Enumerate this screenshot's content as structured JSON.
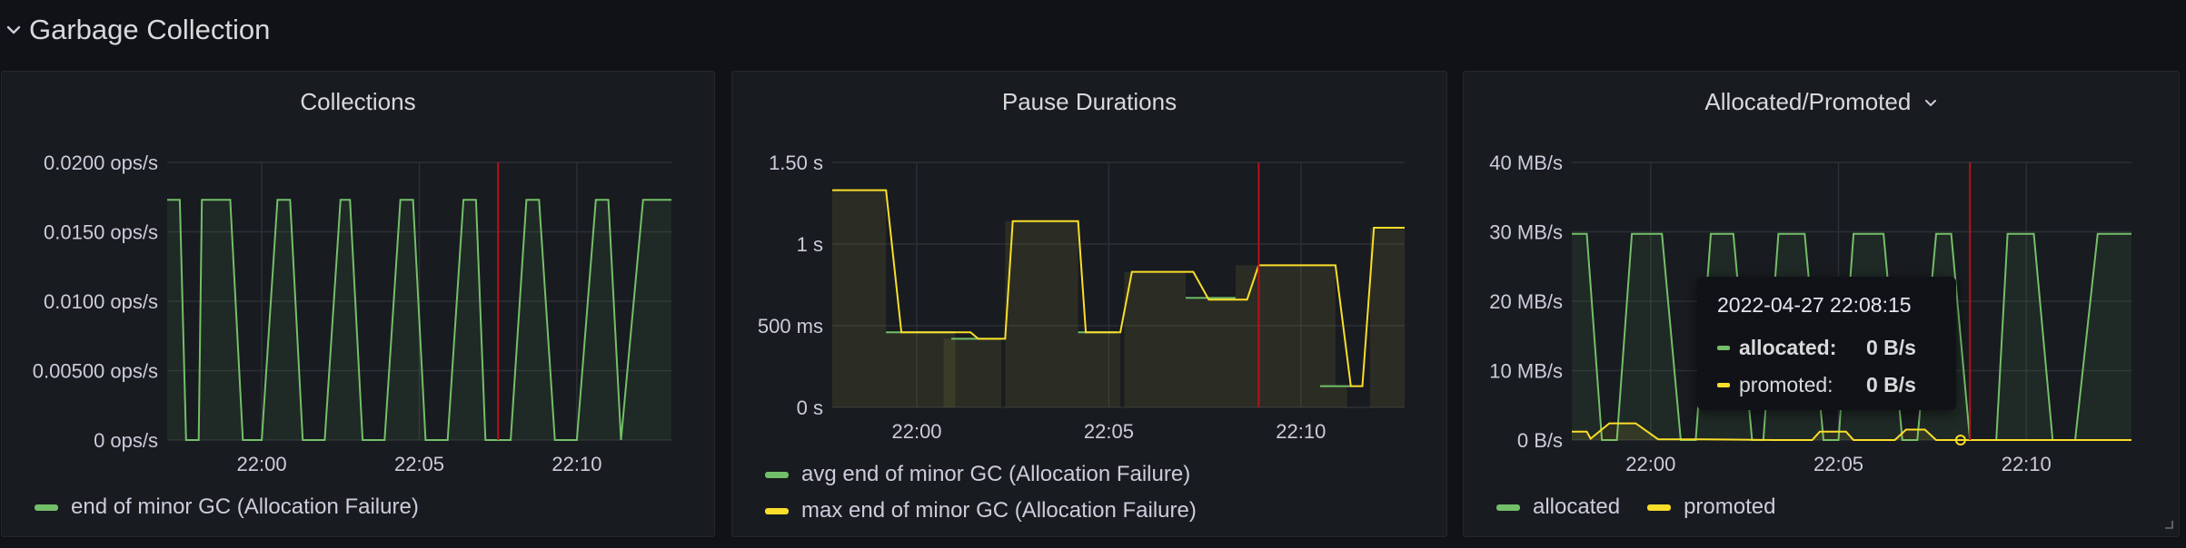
{
  "row": {
    "title": "Garbage Collection"
  },
  "panels": [
    {
      "title": "Collections",
      "legend": [
        {
          "name": "end of minor GC (Allocation Failure)",
          "color": "#73bf69"
        }
      ]
    },
    {
      "title": "Pause Durations",
      "legend": [
        {
          "name": "avg end of minor GC (Allocation Failure)",
          "color": "#73bf69"
        },
        {
          "name": "max end of minor GC (Allocation Failure)",
          "color": "#fade2a"
        }
      ]
    },
    {
      "title": "Allocated/Promoted",
      "legend": [
        {
          "name": "allocated",
          "color": "#73bf69"
        },
        {
          "name": "promoted",
          "color": "#fade2a"
        }
      ],
      "tooltip": {
        "time": "2022-04-27 22:08:15",
        "rows": [
          {
            "label": "allocated:",
            "value": "0 B/s",
            "color": "#73bf69"
          },
          {
            "label": "promoted:",
            "value": "0 B/s",
            "color": "#fade2a"
          }
        ]
      }
    }
  ],
  "chart_data": [
    {
      "type": "area",
      "title": "Collections",
      "x_unit": "minutes since 21:58",
      "xlim": [
        -1,
        15
      ],
      "x_ticks": [
        {
          "x": 2,
          "label": "22:00"
        },
        {
          "x": 7,
          "label": "22:05"
        },
        {
          "x": 12,
          "label": "22:10"
        }
      ],
      "ylim": [
        0,
        0.02
      ],
      "y_ticks": [
        {
          "y": 0,
          "label": "0 ops/s"
        },
        {
          "y": 0.005,
          "label": "0.00500 ops/s"
        },
        {
          "y": 0.01,
          "label": "0.0100 ops/s"
        },
        {
          "y": 0.015,
          "label": "0.0150 ops/s"
        },
        {
          "y": 0.02,
          "label": "0.0200 ops/s"
        }
      ],
      "marker_x": 9.5,
      "series": [
        {
          "name": "end of minor GC (Allocation Failure)",
          "color": "#73bf69",
          "mode": "line",
          "x": [
            -1,
            -0.6,
            -0.4,
            0,
            0.1,
            1,
            1.4,
            2,
            2.5,
            2.9,
            3.3,
            4,
            4.5,
            4.8,
            5.2,
            5.9,
            6.4,
            6.8,
            7.2,
            7.9,
            8.4,
            8.8,
            9.1,
            9.9,
            10.4,
            10.8,
            11.3,
            12,
            12.6,
            13,
            13.4,
            14.1,
            15
          ],
          "y": [
            0.0173,
            0.0173,
            0,
            0,
            0.0173,
            0.0173,
            0,
            0,
            0.0173,
            0.0173,
            0,
            0,
            0.0173,
            0.0173,
            0,
            0,
            0.0173,
            0.0173,
            0,
            0,
            0.0173,
            0.0173,
            0,
            0,
            0.0173,
            0.0173,
            0,
            0,
            0.0173,
            0.0173,
            0,
            0.0173,
            0.0173
          ]
        }
      ]
    },
    {
      "type": "line",
      "title": "Pause Durations",
      "x_unit": "minutes since 21:58",
      "xlim": [
        -0.2,
        14.7
      ],
      "x_ticks": [
        {
          "x": 2,
          "label": "22:00"
        },
        {
          "x": 7,
          "label": "22:05"
        },
        {
          "x": 12,
          "label": "22:10"
        }
      ],
      "ylim": [
        0,
        1.5
      ],
      "y_ticks": [
        {
          "y": 0,
          "label": "0 s"
        },
        {
          "y": 0.5,
          "label": "500 ms"
        },
        {
          "y": 1,
          "label": "1 s"
        },
        {
          "y": 1.5,
          "label": "1.50 s"
        }
      ],
      "marker_x": 10.9,
      "bars": [
        {
          "x0": -0.2,
          "x1": 1.2,
          "y": 1.33
        },
        {
          "x0": 1.2,
          "x1": 3.0,
          "y": 0.46
        },
        {
          "x0": 2.7,
          "x1": 4.2,
          "y": 0.42
        },
        {
          "x0": 4.3,
          "x1": 6.2,
          "y": 1.14
        },
        {
          "x0": 6.2,
          "x1": 7.3,
          "y": 0.46
        },
        {
          "x0": 7.4,
          "x1": 9.0,
          "y": 0.83
        },
        {
          "x0": 9.0,
          "x1": 10.3,
          "y": 0.66
        },
        {
          "x0": 10.3,
          "x1": 12.9,
          "y": 0.87
        },
        {
          "x0": 12.9,
          "x1": 13.2,
          "y": 0.13
        },
        {
          "x0": 13.8,
          "x1": 14.7,
          "y": 1.1
        }
      ],
      "series": [
        {
          "name": "avg end of minor GC (Allocation Failure)",
          "color": "#73bf69",
          "segments": [
            [
              [
                1.2,
                0.46
              ],
              [
                3.0,
                0.46
              ]
            ],
            [
              [
                2.9,
                0.42
              ],
              [
                4.2,
                0.42
              ]
            ],
            [
              [
                6.2,
                0.46
              ],
              [
                7.2,
                0.46
              ]
            ],
            [
              [
                9.0,
                0.67
              ],
              [
                10.3,
                0.67
              ]
            ],
            [
              [
                12.5,
                0.13
              ],
              [
                13.3,
                0.13
              ]
            ]
          ]
        },
        {
          "name": "max end of minor GC (Allocation Failure)",
          "color": "#fade2a",
          "x": [
            -0.2,
            1.2,
            1.6,
            3.4,
            3.6,
            4.3,
            4.5,
            6.2,
            6.4,
            7.3,
            7.6,
            9.2,
            9.6,
            10.6,
            10.9,
            12.9,
            13.3,
            13.6,
            13.9,
            14.7
          ],
          "y": [
            1.33,
            1.33,
            0.46,
            0.46,
            0.42,
            0.42,
            1.14,
            1.14,
            0.46,
            0.46,
            0.83,
            0.83,
            0.66,
            0.66,
            0.87,
            0.87,
            0.13,
            0.13,
            1.1,
            1.1
          ]
        }
      ]
    },
    {
      "type": "area",
      "title": "Allocated/Promoted",
      "x_unit": "minutes since 21:58",
      "xlim": [
        -0.1,
        14.8
      ],
      "x_ticks": [
        {
          "x": 2,
          "label": "22:00"
        },
        {
          "x": 7,
          "label": "22:05"
        },
        {
          "x": 12,
          "label": "22:10"
        }
      ],
      "ylim": [
        0,
        40
      ],
      "y_ticks": [
        {
          "y": 0,
          "label": "0 B/s"
        },
        {
          "y": 10,
          "label": "10 MB/s"
        },
        {
          "y": 20,
          "label": "20 MB/s"
        },
        {
          "y": 30,
          "label": "30 MB/s"
        },
        {
          "y": 40,
          "label": "40 MB/s"
        }
      ],
      "marker_x": 10.5,
      "hover_x": 10.25,
      "series": [
        {
          "name": "allocated",
          "color": "#73bf69",
          "mode": "line",
          "x": [
            -0.1,
            0.3,
            0.7,
            1.1,
            1.5,
            2.3,
            2.8,
            3.2,
            3.6,
            4.2,
            4.7,
            5.0,
            5.4,
            6.1,
            6.6,
            7.0,
            7.4,
            8.2,
            8.7,
            9.1,
            9.6,
            10.0,
            10.5,
            11.2,
            11.5,
            12.2,
            12.7,
            13.3,
            13.9,
            14.8
          ],
          "y": [
            29.7,
            29.7,
            0,
            0,
            29.7,
            29.7,
            0,
            0,
            29.7,
            29.7,
            0,
            0,
            29.7,
            29.7,
            0,
            0,
            29.7,
            29.7,
            0,
            0,
            29.7,
            29.7,
            0,
            0,
            29.7,
            29.7,
            0,
            0,
            29.7,
            29.7
          ]
        },
        {
          "name": "promoted",
          "color": "#fade2a",
          "mode": "line",
          "x": [
            -0.1,
            0.3,
            0.4,
            0.9,
            1.6,
            2.2,
            3.4,
            5.3,
            6.3,
            6.5,
            7.2,
            7.4,
            8.5,
            8.8,
            9.3,
            9.6,
            10.2,
            14.8
          ],
          "y": [
            1.2,
            1.2,
            0.2,
            2.4,
            2.4,
            0.1,
            0.1,
            0,
            0,
            1.2,
            1.2,
            0,
            0,
            1.5,
            1.5,
            0,
            0,
            0
          ]
        }
      ]
    }
  ]
}
